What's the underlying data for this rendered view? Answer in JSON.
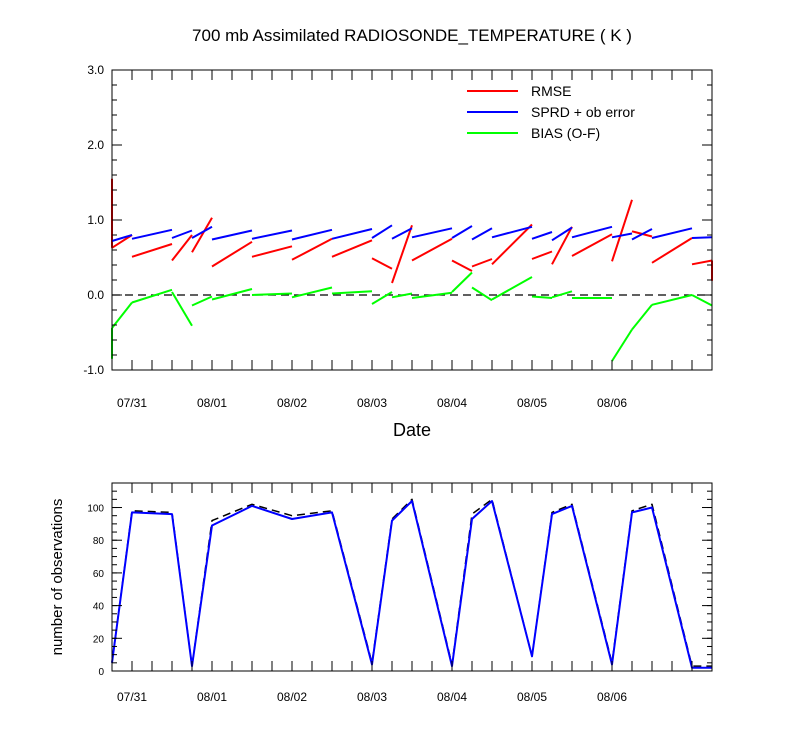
{
  "chart_data": [
    {
      "type": "line",
      "title": "700 mb Assimilated RADIOSONDE_TEMPERATURE ( K )",
      "xlabel": "Date",
      "ylabel": "",
      "x_start": "07/30 18Z",
      "x_step_hours": 6,
      "xticks": [
        "07/31",
        "08/01",
        "08/02",
        "08/03",
        "08/04",
        "08/05",
        "08/06"
      ],
      "ylim": [
        -1.0,
        3.0
      ],
      "yticks": [
        "-1.0",
        "0.0",
        "1.0",
        "2.0",
        "3.0"
      ],
      "legend_position": "top-right",
      "zero_line": "dashed",
      "series": [
        {
          "name": "RMSE",
          "color": "#ff0000",
          "segments": [
            {
              "x": [
                0,
                0
              ],
              "y": [
                1.55,
                0.63
              ]
            },
            {
              "x": [
                0,
                1
              ],
              "y": [
                0.63,
                0.8
              ]
            },
            {
              "x": [
                1,
                3
              ],
              "y": [
                0.51,
                0.68
              ]
            },
            {
              "x": [
                3,
                4
              ],
              "y": [
                0.46,
                0.8
              ]
            },
            {
              "x": [
                4,
                5
              ],
              "y": [
                0.57,
                1.03
              ]
            },
            {
              "x": [
                5,
                7
              ],
              "y": [
                0.38,
                0.71
              ]
            },
            {
              "x": [
                7,
                9
              ],
              "y": [
                0.51,
                0.65
              ]
            },
            {
              "x": [
                9,
                11
              ],
              "y": [
                0.47,
                0.75
              ]
            },
            {
              "x": [
                11,
                13
              ],
              "y": [
                0.51,
                0.73
              ]
            },
            {
              "x": [
                13,
                14
              ],
              "y": [
                0.49,
                0.35
              ]
            },
            {
              "x": [
                14,
                15
              ],
              "y": [
                0.16,
                0.93
              ]
            },
            {
              "x": [
                15,
                17
              ],
              "y": [
                0.46,
                0.75
              ]
            },
            {
              "x": [
                17,
                18
              ],
              "y": [
                0.46,
                0.32
              ]
            },
            {
              "x": [
                18,
                19
              ],
              "y": [
                0.38,
                0.48
              ]
            },
            {
              "x": [
                19,
                21
              ],
              "y": [
                0.41,
                0.94
              ]
            },
            {
              "x": [
                21,
                22
              ],
              "y": [
                0.48,
                0.58
              ]
            },
            {
              "x": [
                22,
                23
              ],
              "y": [
                0.41,
                0.91
              ]
            },
            {
              "x": [
                23,
                25
              ],
              "y": [
                0.52,
                0.81
              ]
            },
            {
              "x": [
                25,
                26
              ],
              "y": [
                0.45,
                1.27
              ]
            },
            {
              "x": [
                26,
                27
              ],
              "y": [
                0.85,
                0.78
              ]
            },
            {
              "x": [
                27,
                29
              ],
              "y": [
                0.43,
                0.76
              ]
            },
            {
              "x": [
                29,
                30
              ],
              "y": [
                0.41,
                0.46
              ]
            },
            {
              "x": [
                30,
                30
              ],
              "y": [
                0.46,
                0.19
              ]
            }
          ]
        },
        {
          "name": "SPRD + ob error",
          "color": "#0000ff",
          "segments": [
            {
              "x": [
                0,
                1
              ],
              "y": [
                0.72,
                0.8
              ]
            },
            {
              "x": [
                1,
                3
              ],
              "y": [
                0.75,
                0.87
              ]
            },
            {
              "x": [
                3,
                4
              ],
              "y": [
                0.76,
                0.86
              ]
            },
            {
              "x": [
                4,
                5
              ],
              "y": [
                0.76,
                0.91
              ]
            },
            {
              "x": [
                5,
                7
              ],
              "y": [
                0.74,
                0.86
              ]
            },
            {
              "x": [
                7,
                9
              ],
              "y": [
                0.75,
                0.86
              ]
            },
            {
              "x": [
                9,
                11
              ],
              "y": [
                0.74,
                0.87
              ]
            },
            {
              "x": [
                11,
                13
              ],
              "y": [
                0.75,
                0.88
              ]
            },
            {
              "x": [
                13,
                14
              ],
              "y": [
                0.76,
                0.93
              ]
            },
            {
              "x": [
                14,
                15
              ],
              "y": [
                0.75,
                0.89
              ]
            },
            {
              "x": [
                15,
                17
              ],
              "y": [
                0.77,
                0.89
              ]
            },
            {
              "x": [
                17,
                18
              ],
              "y": [
                0.76,
                0.92
              ]
            },
            {
              "x": [
                18,
                19
              ],
              "y": [
                0.74,
                0.89
              ]
            },
            {
              "x": [
                19,
                21
              ],
              "y": [
                0.77,
                0.91
              ]
            },
            {
              "x": [
                21,
                22
              ],
              "y": [
                0.75,
                0.84
              ]
            },
            {
              "x": [
                22,
                23
              ],
              "y": [
                0.73,
                0.9
              ]
            },
            {
              "x": [
                23,
                25
              ],
              "y": [
                0.77,
                0.91
              ]
            },
            {
              "x": [
                25,
                26
              ],
              "y": [
                0.77,
                0.82
              ]
            },
            {
              "x": [
                26,
                27
              ],
              "y": [
                0.74,
                0.88
              ]
            },
            {
              "x": [
                27,
                29
              ],
              "y": [
                0.76,
                0.89
              ]
            },
            {
              "x": [
                29,
                30
              ],
              "y": [
                0.76,
                0.77
              ]
            }
          ]
        },
        {
          "name": "BIAS (O-F)",
          "color": "#00ff00",
          "segments": [
            {
              "x": [
                0,
                0
              ],
              "y": [
                -0.85,
                -0.44
              ]
            },
            {
              "x": [
                0,
                1
              ],
              "y": [
                -0.44,
                -0.1
              ]
            },
            {
              "x": [
                1,
                3
              ],
              "y": [
                -0.1,
                0.07
              ]
            },
            {
              "x": [
                3,
                4
              ],
              "y": [
                0.04,
                -0.41
              ]
            },
            {
              "x": [
                4,
                5
              ],
              "y": [
                -0.14,
                -0.02
              ]
            },
            {
              "x": [
                5,
                7
              ],
              "y": [
                -0.06,
                0.08
              ]
            },
            {
              "x": [
                7,
                9
              ],
              "y": [
                0.0,
                0.02
              ]
            },
            {
              "x": [
                9,
                11
              ],
              "y": [
                -0.03,
                0.1
              ]
            },
            {
              "x": [
                11,
                13
              ],
              "y": [
                0.02,
                0.05
              ]
            },
            {
              "x": [
                13,
                14
              ],
              "y": [
                -0.12,
                0.04
              ]
            },
            {
              "x": [
                14,
                15
              ],
              "y": [
                -0.03,
                0.02
              ]
            },
            {
              "x": [
                15,
                17
              ],
              "y": [
                -0.04,
                0.03
              ]
            },
            {
              "x": [
                17,
                18
              ],
              "y": [
                0.04,
                0.3
              ]
            },
            {
              "x": [
                18,
                19
              ],
              "y": [
                0.1,
                -0.07
              ]
            },
            {
              "x": [
                19,
                21
              ],
              "y": [
                -0.06,
                0.24
              ]
            },
            {
              "x": [
                21,
                22
              ],
              "y": [
                -0.02,
                -0.04
              ]
            },
            {
              "x": [
                22,
                23
              ],
              "y": [
                -0.03,
                0.05
              ]
            },
            {
              "x": [
                23,
                25
              ],
              "y": [
                -0.04,
                -0.04
              ]
            },
            {
              "x": [
                25,
                26
              ],
              "y": [
                -0.88,
                -0.46
              ]
            },
            {
              "x": [
                26,
                27
              ],
              "y": [
                -0.46,
                -0.13
              ]
            },
            {
              "x": [
                27,
                29
              ],
              "y": [
                -0.13,
                0.0
              ]
            },
            {
              "x": [
                29,
                30
              ],
              "y": [
                0.0,
                -0.14
              ]
            }
          ]
        }
      ]
    },
    {
      "type": "line",
      "title": "",
      "xlabel": "",
      "ylabel": "number of observations",
      "x_start": "07/30 18Z",
      "x_step_hours": 6,
      "xticks": [
        "07/31",
        "08/01",
        "08/02",
        "08/03",
        "08/04",
        "08/05",
        "08/06"
      ],
      "ylim": [
        0,
        115
      ],
      "yticks": [
        "0",
        "20",
        "40",
        "60",
        "80",
        "100"
      ],
      "series": [
        {
          "style": "dashed",
          "color": "#000000",
          "x": [
            0,
            1,
            3,
            4,
            5,
            7,
            9,
            11,
            13,
            14,
            15,
            17,
            18,
            19,
            21,
            22,
            23,
            25,
            26,
            27,
            29,
            30
          ],
          "y": [
            5,
            98,
            97,
            3,
            92,
            102,
            95,
            98,
            5,
            93,
            105,
            4,
            96,
            105,
            9,
            97,
            102,
            5,
            98,
            102,
            3,
            3
          ]
        },
        {
          "style": "solid",
          "color": "#0000ff",
          "x": [
            0,
            1,
            3,
            4,
            5,
            7,
            9,
            11,
            13,
            14,
            15,
            17,
            18,
            19,
            21,
            22,
            23,
            25,
            26,
            27,
            29,
            30
          ],
          "y": [
            5,
            97,
            96,
            3,
            89,
            101,
            93,
            97,
            4,
            92,
            104,
            3,
            93,
            104,
            9,
            96,
            101,
            4,
            97,
            100,
            2,
            2
          ]
        }
      ]
    }
  ]
}
